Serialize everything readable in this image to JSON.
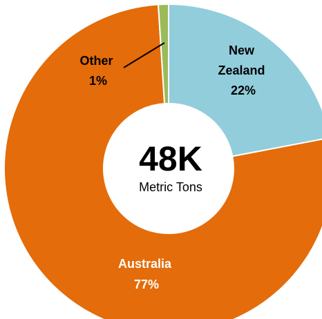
{
  "chart_data": {
    "type": "pie",
    "donut": true,
    "center_value": "48K",
    "center_unit": "Metric Tons",
    "slices": [
      {
        "name": "New Zealand",
        "name_lines": [
          "New",
          "Zealand"
        ],
        "value": 22,
        "pct_label": "22%",
        "color": "#92cddc",
        "label_color": "#000000"
      },
      {
        "name": "Australia",
        "name_lines": [
          "Australia"
        ],
        "value": 77,
        "pct_label": "77%",
        "color": "#e46c0a",
        "label_color": "#ffffff"
      },
      {
        "name": "Other",
        "name_lines": [
          "Other"
        ],
        "value": 1,
        "pct_label": "1%",
        "color": "#9bbb59",
        "label_color": "#000000"
      }
    ]
  }
}
